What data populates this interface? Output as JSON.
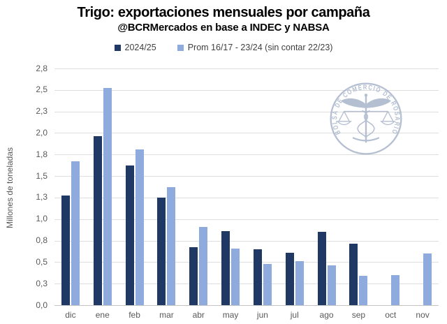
{
  "header": {
    "title": "Trigo: exportaciones mensuales por campaña",
    "subtitle": "@BCRMercados en base a INDEC y NABSA"
  },
  "legend": [
    {
      "label": "2024/25",
      "color": "#1f3864"
    },
    {
      "label": "Prom 16/17 - 23/24 (sin contar 22/23)",
      "color": "#8faadc"
    }
  ],
  "chart_data": {
    "type": "bar",
    "title": "Trigo: exportaciones mensuales por campaña",
    "subtitle": "@BCRMercados en base a INDEC y NABSA",
    "xlabel": "",
    "ylabel": "Millones de toneladas",
    "categories": [
      "dic",
      "ene",
      "feb",
      "mar",
      "abr",
      "may",
      "jun",
      "jul",
      "ago",
      "sep",
      "oct",
      "nov"
    ],
    "series": [
      {
        "name": "2024/25",
        "color": "#1f3864",
        "values": [
          1.27,
          1.96,
          1.62,
          1.25,
          0.67,
          0.86,
          0.65,
          0.61,
          0.85,
          0.71,
          null,
          null
        ]
      },
      {
        "name": "Prom 16/17 - 23/24 (sin contar 22/23)",
        "color": "#8faadc",
        "values": [
          1.67,
          2.52,
          1.81,
          1.37,
          0.91,
          0.66,
          0.48,
          0.51,
          0.46,
          0.34,
          0.35,
          0.6
        ]
      }
    ],
    "ylim": [
      0,
      2.75
    ],
    "ytick_step": 0.25,
    "ytick_labels": [
      "0,0",
      "0,3",
      "0,5",
      "0,8",
      "1,0",
      "1,3",
      "1,5",
      "1,8",
      "2,0",
      "2,3",
      "2,5",
      "2,8"
    ],
    "grid": true,
    "legend_position": "top",
    "decimal_separator": ","
  },
  "watermark": {
    "ring_text": "BOLSA DE COMERCIO DE ROSARIO",
    "color": "#a4b1c7"
  },
  "colors": {
    "series_dark": "#1f3864",
    "series_light": "#8faadc",
    "gridline": "#dedede",
    "axis_text": "#595959",
    "title_text": "#000000",
    "background": "#ffffff"
  }
}
